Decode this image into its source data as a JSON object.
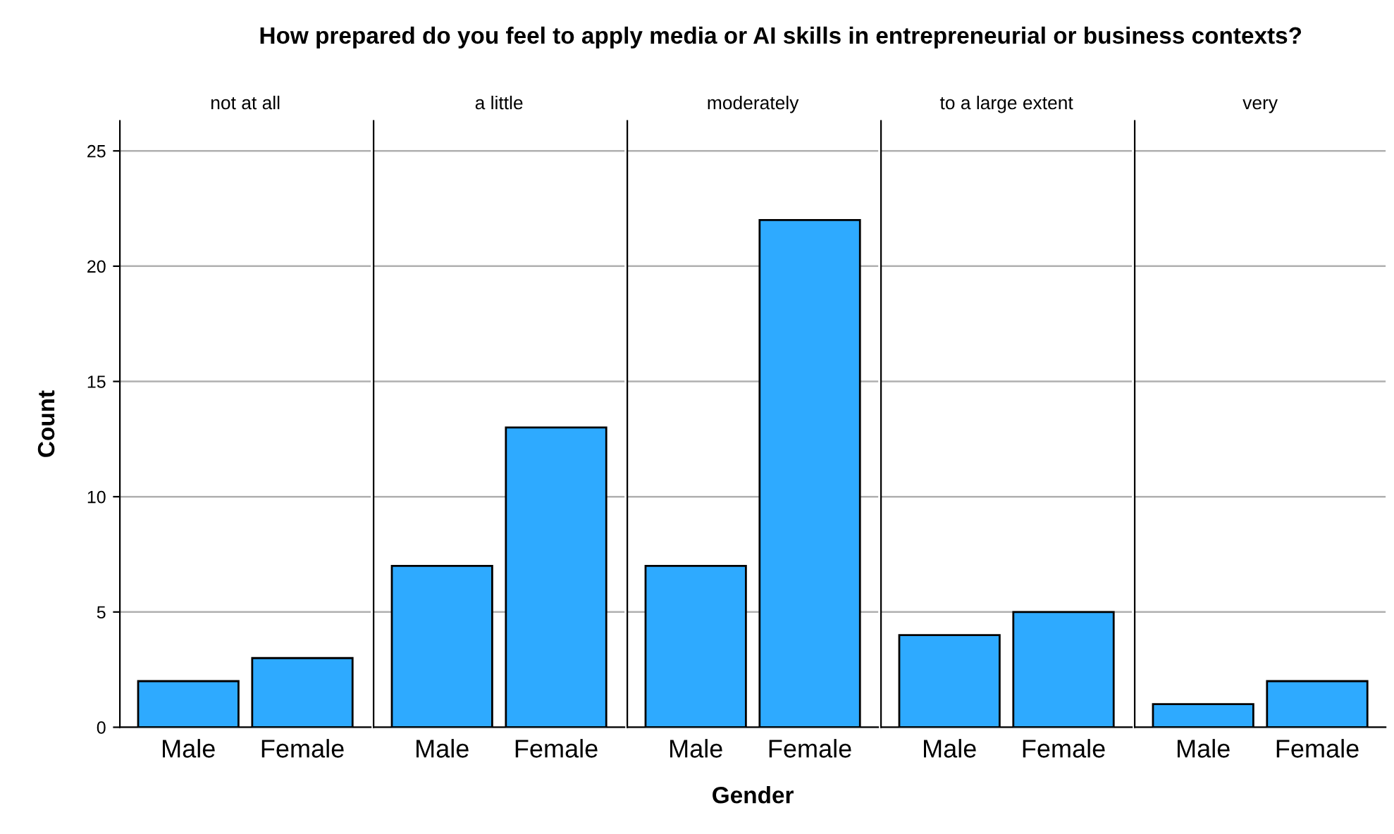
{
  "chart_data": [
    {
      "type": "bar",
      "title": "How prepared do you feel to apply media or AI skills in entrepreneurial or business contexts?",
      "subtitle": "not at all",
      "ylabel": "Count",
      "categories": [
        "Male",
        "Female"
      ],
      "values": [
        2,
        3
      ],
      "color": "#2eaaff",
      "ylim": [
        0,
        26.3
      ],
      "yticks": [
        0,
        5,
        10,
        15,
        20,
        25
      ],
      "grid": "y"
    },
    {
      "type": "bar",
      "subtitle": "a little",
      "categories": [
        "Male",
        "Female"
      ],
      "values": [
        7,
        13
      ],
      "color": "#2eaaff",
      "ylim": [
        0,
        26.3
      ],
      "yticks": [
        0,
        5,
        10,
        15,
        20,
        25
      ],
      "grid": "y",
      "tick_labels": "x"
    },
    {
      "type": "bar",
      "subtitle": "moderately",
      "xlabel": "Gender",
      "categories": [
        "Male",
        "Female"
      ],
      "values": [
        7,
        22
      ],
      "color": "#2eaaff",
      "ylim": [
        0,
        26.3
      ],
      "yticks": [
        0,
        5,
        10,
        15,
        20,
        25
      ],
      "grid": "y",
      "tick_labels": "x"
    },
    {
      "type": "bar",
      "subtitle": "to a large extent",
      "categories": [
        "Male",
        "Female"
      ],
      "values": [
        4,
        5
      ],
      "color": "#2eaaff",
      "ylim": [
        0,
        26.3
      ],
      "yticks": [
        0,
        5,
        10,
        15,
        20,
        25
      ],
      "grid": "y",
      "tick_labels": "x"
    },
    {
      "type": "bar",
      "subtitle": "very",
      "categories": [
        "Male",
        "Female"
      ],
      "values": [
        1,
        2
      ],
      "color": "#2eaaff",
      "ylim": [
        0,
        26.3
      ],
      "yticks": [
        0,
        5,
        10,
        15,
        20,
        25
      ],
      "grid": "y",
      "tick_labels": "x"
    }
  ]
}
